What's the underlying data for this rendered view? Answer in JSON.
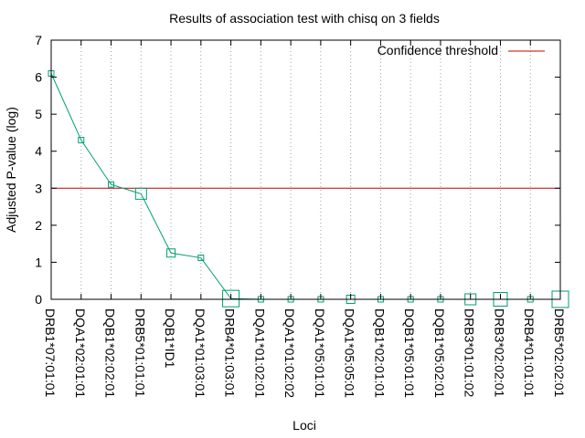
{
  "chart_data": {
    "type": "line",
    "title": "Results of association test with chisq on 3 fields",
    "xlabel": "Loci",
    "ylabel": "Adjusted P-value (log)",
    "ylim": [
      0,
      7
    ],
    "yticks": [
      0,
      1,
      2,
      3,
      4,
      5,
      6,
      7
    ],
    "grid": "vertical dotted lines at each category",
    "legend_position": "top-right",
    "categories": [
      "DRB1*07:01:01",
      "DQA1*02:01:01",
      "DQB1*02:02:01",
      "DRB5*01:01:01",
      "DQB1*ID1",
      "DQA1*01:03:01",
      "DRB4*01:03:01",
      "DQA1*01:02:01",
      "DQA1*01:02:02",
      "DQA1*05:01:01",
      "DQA1*05:05:01",
      "DQB1*02:01:01",
      "DQB1*05:01:01",
      "DQB1*05:02:01",
      "DRB3*01:01:02",
      "DRB3*02:02:01",
      "DRB4*01:01:01",
      "DRB5*02:02:01"
    ],
    "series": [
      {
        "values": [
          6.1,
          4.3,
          3.1,
          2.85,
          1.25,
          1.12,
          0.02,
          0,
          0,
          0,
          0,
          0,
          0,
          0,
          0,
          0,
          0,
          0
        ],
        "marker_size": [
          1,
          1,
          1,
          2,
          1.5,
          1,
          3,
          1,
          1,
          1,
          1.5,
          1,
          1,
          1,
          2,
          2.5,
          1,
          3
        ],
        "color": "#009e73"
      }
    ],
    "threshold": {
      "name": "Confidence threshold",
      "value": 3,
      "color": "#c00000"
    }
  }
}
